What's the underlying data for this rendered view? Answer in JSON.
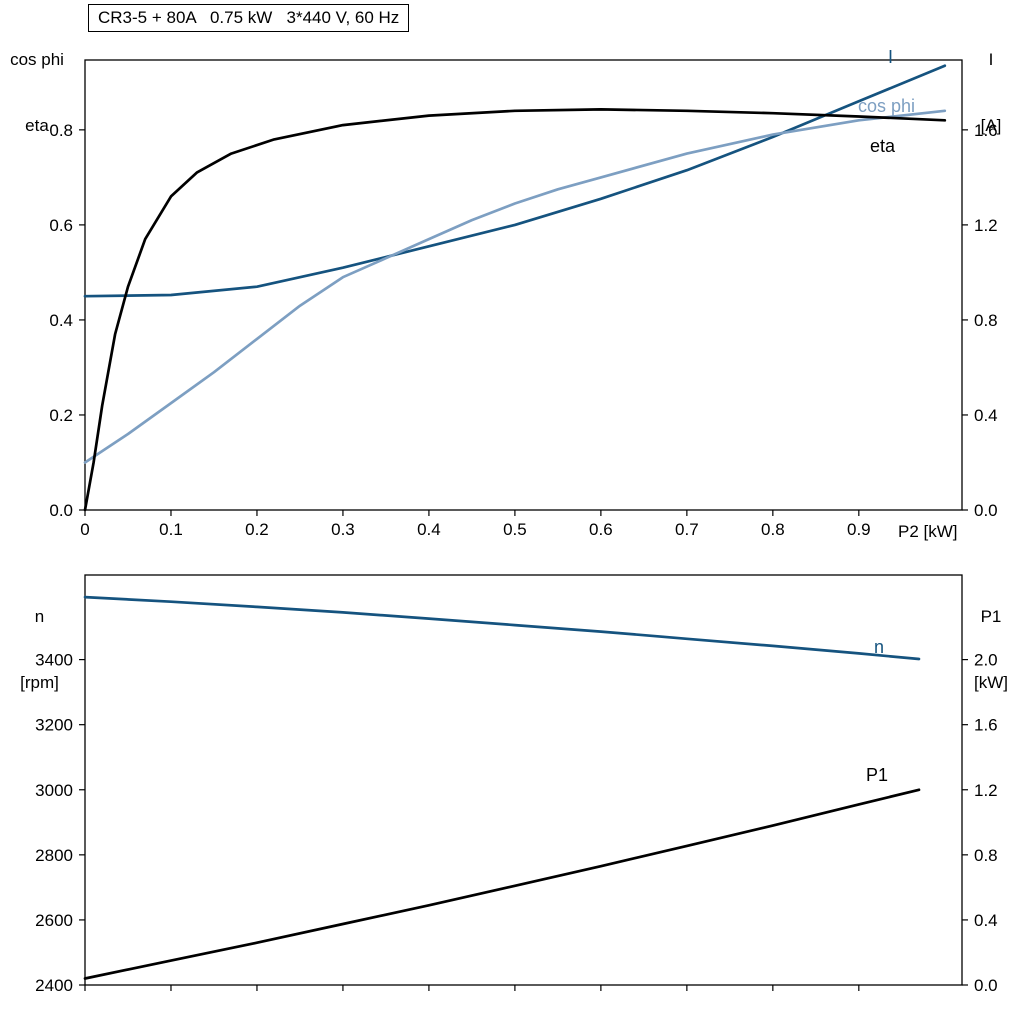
{
  "page": {
    "background": "#ffffff"
  },
  "colors": {
    "dark_blue": "#15537f",
    "light_blue": "#7d9fc2",
    "black": "#000000"
  },
  "chart_data": [
    {
      "type": "line",
      "title": "CR3-5 + 80A   0.75 kW   3*440 V, 60 Hz",
      "grid": false,
      "legend_position": "curve-end-labels",
      "x_axis": {
        "label": "P2 [kW]",
        "min": 0,
        "max": 1.02,
        "tick_values": [
          0,
          0.1,
          0.2,
          0.3,
          0.4,
          0.5,
          0.6,
          0.7,
          0.8,
          0.9
        ],
        "tick_labels": [
          "0",
          "0.1",
          "0.2",
          "0.3",
          "0.4",
          "0.5",
          "0.6",
          "0.7",
          "0.8",
          "0.9"
        ]
      },
      "left_axis": {
        "label_lines": [
          "cos phi",
          "eta"
        ],
        "min": 0,
        "max": 0.947,
        "tick_values": [
          0,
          0.2,
          0.4,
          0.6,
          0.8
        ],
        "tick_labels": [
          "0.0",
          "0.2",
          "0.4",
          "0.6",
          "0.8"
        ]
      },
      "right_axis": {
        "label_lines": [
          "I",
          "[A]"
        ],
        "min": 0,
        "max": 1.894,
        "tick_values": [
          0,
          0.4,
          0.8,
          1.2,
          1.6
        ],
        "tick_labels": [
          "0.0",
          "0.4",
          "0.8",
          "1.2",
          "1.6"
        ]
      },
      "series": [
        {
          "name": "I",
          "axis": "right",
          "color": "#15537f",
          "x": [
            0,
            0.1,
            0.2,
            0.3,
            0.4,
            0.5,
            0.6,
            0.7,
            0.8,
            0.9,
            1.0
          ],
          "y": [
            0.9,
            0.905,
            0.94,
            1.02,
            1.11,
            1.2,
            1.31,
            1.43,
            1.57,
            1.72,
            1.87
          ]
        },
        {
          "name": "cos phi",
          "axis": "left",
          "color": "#7d9fc2",
          "x": [
            0,
            0.05,
            0.1,
            0.15,
            0.2,
            0.25,
            0.3,
            0.35,
            0.4,
            0.45,
            0.5,
            0.55,
            0.6,
            0.7,
            0.8,
            0.9,
            1.0
          ],
          "y": [
            0.1,
            0.16,
            0.225,
            0.29,
            0.36,
            0.43,
            0.49,
            0.53,
            0.57,
            0.61,
            0.645,
            0.675,
            0.7,
            0.75,
            0.79,
            0.82,
            0.84
          ]
        },
        {
          "name": "eta",
          "axis": "left",
          "color": "#000000",
          "x": [
            0,
            0.01,
            0.02,
            0.035,
            0.05,
            0.07,
            0.1,
            0.13,
            0.17,
            0.22,
            0.3,
            0.4,
            0.5,
            0.6,
            0.7,
            0.8,
            0.9,
            1.0
          ],
          "y": [
            0,
            0.1,
            0.22,
            0.37,
            0.47,
            0.57,
            0.66,
            0.71,
            0.75,
            0.78,
            0.81,
            0.83,
            0.84,
            0.843,
            0.84,
            0.835,
            0.828,
            0.82
          ]
        }
      ]
    },
    {
      "type": "line",
      "title": "",
      "grid": false,
      "legend_position": "curve-end-labels",
      "x_axis": {
        "label": "",
        "min": 0,
        "max": 1.02,
        "tick_values": [
          0,
          0.1,
          0.2,
          0.3,
          0.4,
          0.5,
          0.6,
          0.7,
          0.8,
          0.9
        ],
        "tick_labels": null
      },
      "left_axis": {
        "label_lines": [
          "n",
          "[rpm]"
        ],
        "min": 2400,
        "max": 3660,
        "tick_values": [
          2400,
          2600,
          2800,
          3000,
          3200,
          3400
        ],
        "tick_labels": [
          "2400",
          "2600",
          "2800",
          "3000",
          "3200",
          "3400"
        ]
      },
      "right_axis": {
        "label_lines": [
          "P1",
          "[kW]"
        ],
        "min": 0,
        "max": 2.52,
        "tick_values": [
          0,
          0.4,
          0.8,
          1.2,
          1.6,
          2.0
        ],
        "tick_labels": [
          "0.0",
          "0.4",
          "0.8",
          "1.2",
          "1.6",
          "2.0"
        ]
      },
      "series": [
        {
          "name": "n",
          "axis": "left",
          "color": "#15537f",
          "x": [
            0,
            0.1,
            0.2,
            0.3,
            0.4,
            0.5,
            0.6,
            0.7,
            0.8,
            0.9,
            0.97
          ],
          "y": [
            3592,
            3578,
            3562,
            3545,
            3526,
            3506,
            3486,
            3464,
            3442,
            3419,
            3402
          ]
        },
        {
          "name": "P1",
          "axis": "right",
          "color": "#000000",
          "x": [
            0,
            0.1,
            0.2,
            0.3,
            0.4,
            0.5,
            0.6,
            0.7,
            0.8,
            0.9,
            0.97
          ],
          "y": [
            0.04,
            0.15,
            0.26,
            0.375,
            0.49,
            0.61,
            0.73,
            0.855,
            0.98,
            1.11,
            1.2
          ]
        }
      ]
    }
  ]
}
